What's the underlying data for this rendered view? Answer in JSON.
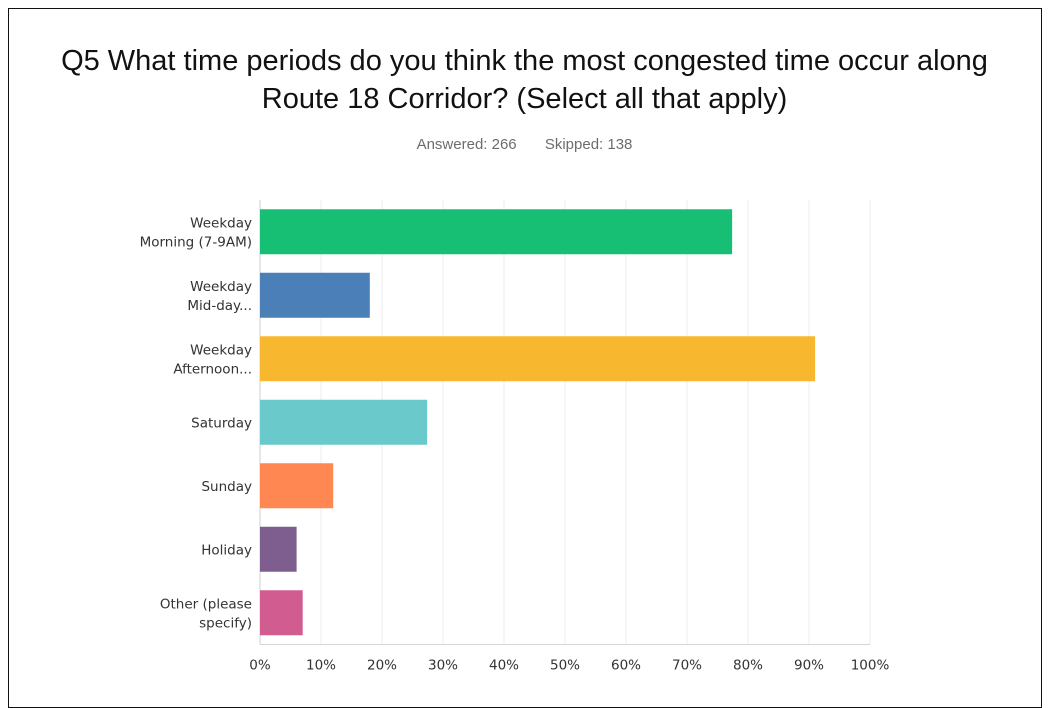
{
  "title_line1": "Q5 What time periods do you think the most congested time occur along",
  "title_line2": "Route 18 Corridor? (Select all that apply)",
  "answered": "Answered: 266",
  "skipped": "Skipped: 138",
  "chart_data": {
    "type": "bar",
    "orientation": "horizontal",
    "categories": [
      [
        "Weekday",
        "Morning (7-9AM)"
      ],
      [
        "Weekday",
        "Mid-day..."
      ],
      [
        "Weekday",
        "Afternoon..."
      ],
      [
        "Saturday"
      ],
      [
        "Sunday"
      ],
      [
        "Holiday"
      ],
      [
        "Other (please",
        "specify)"
      ]
    ],
    "values": [
      77.4,
      18.0,
      91.0,
      27.4,
      12.0,
      6.0,
      7.0
    ],
    "colors": [
      "#16bf73",
      "#4b7fb7",
      "#f7b82f",
      "#69c9cb",
      "#fe8752",
      "#7e5e8e",
      "#d15c8f"
    ],
    "xlim": [
      0,
      100
    ],
    "xticks": [
      "0%",
      "10%",
      "20%",
      "30%",
      "40%",
      "50%",
      "60%",
      "70%",
      "80%",
      "90%",
      "100%"
    ],
    "grid": true
  }
}
